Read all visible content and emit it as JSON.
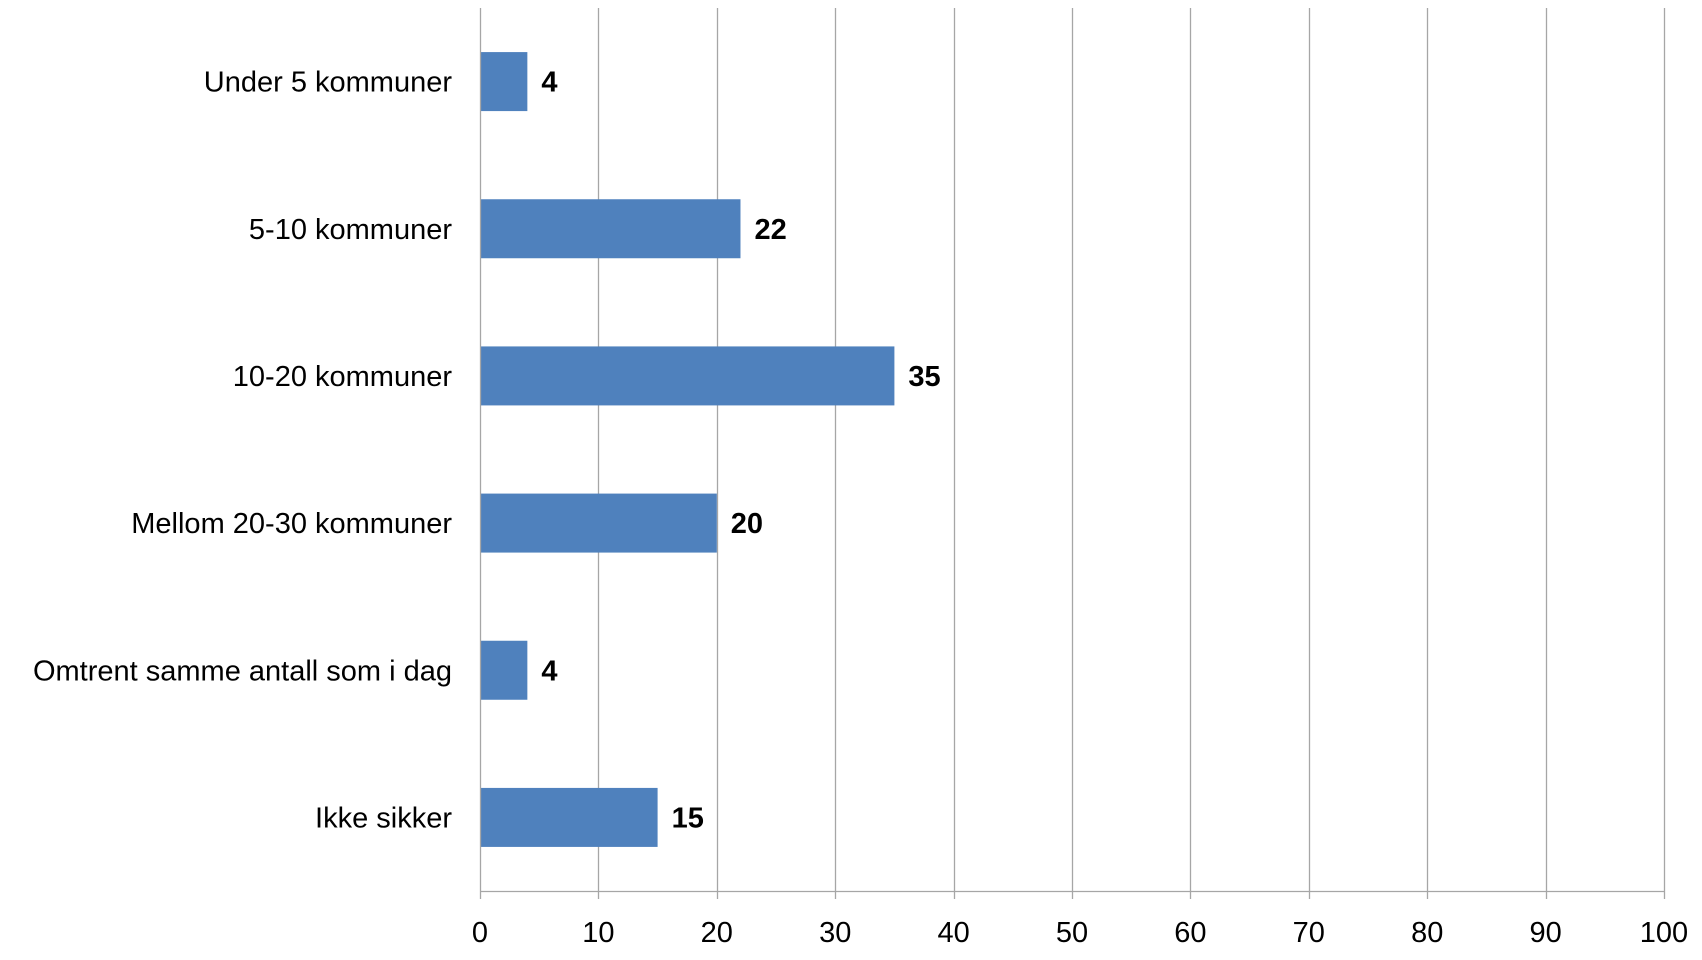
{
  "chart_data": {
    "type": "bar",
    "orientation": "horizontal",
    "categories": [
      "Under 5 kommuner",
      "5-10 kommuner",
      "10-20 kommuner",
      "Mellom 20-30 kommuner",
      "Omtrent samme antall som i dag",
      "Ikke sikker"
    ],
    "values": [
      4,
      22,
      35,
      20,
      4,
      15
    ],
    "title": "",
    "xlabel": "",
    "ylabel": "",
    "xlim": [
      0,
      100
    ],
    "ticks": [
      0,
      10,
      20,
      30,
      40,
      50,
      60,
      70,
      80,
      90,
      100
    ],
    "tick_labels": [
      "0",
      "10",
      "20",
      "30",
      "40",
      "50",
      "60",
      "70",
      "80",
      "90",
      "100"
    ],
    "grid": true,
    "legend": "none",
    "bar_color": "#4F81BD",
    "grid_color": "#A6A6A6"
  }
}
